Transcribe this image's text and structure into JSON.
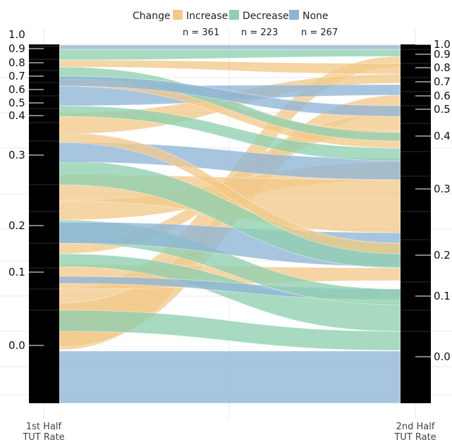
{
  "chart_data": {
    "type": "alluvial",
    "legend": {
      "title": "Change",
      "entries": [
        {
          "name": "Increase",
          "color": "#f2c98a",
          "count_label": "n = 361"
        },
        {
          "name": "Decrease",
          "color": "#8fcfb0",
          "count_label": "n = 223"
        },
        {
          "name": "None",
          "color": "#8fb5d6",
          "count_label": "n = 267"
        }
      ]
    },
    "axes": {
      "left_label_line1": "1st Half",
      "left_label_line2": "TUT Rate",
      "right_label_line1": "2nd Half",
      "right_label_line2": "TUT Rate"
    },
    "left_ticks": [
      "1.0",
      "0.9",
      "0.8",
      "0.7",
      "0.6",
      "0.5",
      "0.4",
      "0.3",
      "0.2",
      "0.1",
      "0.0"
    ],
    "right_ticks": [
      "1.0",
      "0.9",
      "0.8",
      "0.7",
      "0.6",
      "0.5",
      "0.4",
      "0.3",
      "0.2",
      "0.1",
      "0.0"
    ],
    "colors": {
      "increase": "#f2c98a",
      "decrease": "#8fcfb0",
      "none": "#8fb5d6",
      "stratum": "#000000",
      "grid": "#e8e8e8"
    }
  }
}
